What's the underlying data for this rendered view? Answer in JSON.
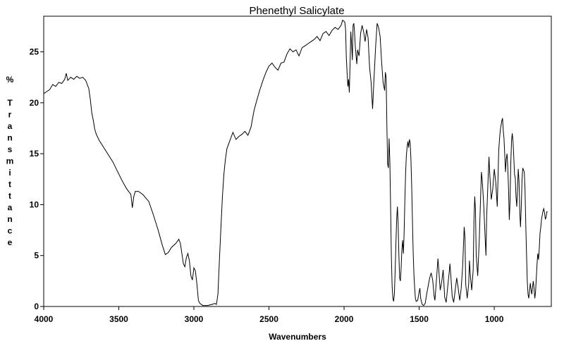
{
  "chart_data": {
    "type": "line",
    "title": "Phenethyl Salicylate",
    "xlabel": "Wavenumbers",
    "ylabel": "% Transmittance",
    "ylabel_prefix": "%",
    "ylabel_word": "Transmittance",
    "xlim": [
      4000,
      620
    ],
    "ylim": [
      0,
      28.5
    ],
    "x_ticks": [
      4000,
      3500,
      3000,
      2500,
      2000,
      1500,
      1000
    ],
    "y_ticks": [
      0,
      5,
      10,
      15,
      20,
      25
    ],
    "grid": false,
    "series": [
      {
        "name": "Phenethyl Salicylate",
        "color": "#000000",
        "points": [
          [
            4000,
            20.9
          ],
          [
            3980,
            21.1
          ],
          [
            3960,
            21.3
          ],
          [
            3940,
            21.8
          ],
          [
            3920,
            21.6
          ],
          [
            3900,
            22.0
          ],
          [
            3880,
            21.9
          ],
          [
            3860,
            22.3
          ],
          [
            3850,
            22.9
          ],
          [
            3840,
            22.2
          ],
          [
            3820,
            22.5
          ],
          [
            3800,
            22.3
          ],
          [
            3780,
            22.6
          ],
          [
            3760,
            22.4
          ],
          [
            3740,
            22.5
          ],
          [
            3720,
            22.2
          ],
          [
            3700,
            21.4
          ],
          [
            3690,
            20.4
          ],
          [
            3680,
            19.0
          ],
          [
            3670,
            18.3
          ],
          [
            3660,
            17.4
          ],
          [
            3650,
            16.9
          ],
          [
            3630,
            16.3
          ],
          [
            3600,
            15.6
          ],
          [
            3570,
            14.9
          ],
          [
            3540,
            14.2
          ],
          [
            3510,
            13.3
          ],
          [
            3480,
            12.4
          ],
          [
            3450,
            11.6
          ],
          [
            3420,
            11.0
          ],
          [
            3410,
            9.7
          ],
          [
            3400,
            10.8
          ],
          [
            3390,
            11.3
          ],
          [
            3370,
            11.3
          ],
          [
            3340,
            11.0
          ],
          [
            3300,
            10.3
          ],
          [
            3270,
            9.0
          ],
          [
            3240,
            7.6
          ],
          [
            3210,
            6.0
          ],
          [
            3190,
            5.1
          ],
          [
            3170,
            5.3
          ],
          [
            3150,
            5.8
          ],
          [
            3120,
            6.2
          ],
          [
            3100,
            6.6
          ],
          [
            3090,
            6.2
          ],
          [
            3080,
            5.2
          ],
          [
            3070,
            4.2
          ],
          [
            3060,
            3.9
          ],
          [
            3050,
            4.8
          ],
          [
            3040,
            5.2
          ],
          [
            3030,
            4.5
          ],
          [
            3020,
            3.0
          ],
          [
            3010,
            2.6
          ],
          [
            3005,
            3.2
          ],
          [
            3000,
            3.8
          ],
          [
            2990,
            3.5
          ],
          [
            2980,
            2.2
          ],
          [
            2970,
            0.6
          ],
          [
            2960,
            0.3
          ],
          [
            2940,
            0.1
          ],
          [
            2910,
            0.1
          ],
          [
            2880,
            0.2
          ],
          [
            2860,
            0.3
          ],
          [
            2850,
            0.2
          ],
          [
            2840,
            1.2
          ],
          [
            2830,
            4.5
          ],
          [
            2820,
            7.8
          ],
          [
            2810,
            10.8
          ],
          [
            2800,
            13.0
          ],
          [
            2790,
            14.5
          ],
          [
            2780,
            15.5
          ],
          [
            2760,
            16.3
          ],
          [
            2740,
            17.1
          ],
          [
            2720,
            16.4
          ],
          [
            2700,
            16.7
          ],
          [
            2680,
            16.9
          ],
          [
            2660,
            17.2
          ],
          [
            2640,
            16.8
          ],
          [
            2620,
            17.6
          ],
          [
            2600,
            19.2
          ],
          [
            2580,
            20.3
          ],
          [
            2560,
            21.3
          ],
          [
            2540,
            22.2
          ],
          [
            2520,
            23.0
          ],
          [
            2500,
            23.6
          ],
          [
            2480,
            23.9
          ],
          [
            2460,
            23.5
          ],
          [
            2440,
            23.2
          ],
          [
            2420,
            23.9
          ],
          [
            2400,
            24.0
          ],
          [
            2380,
            24.8
          ],
          [
            2360,
            25.3
          ],
          [
            2340,
            25.0
          ],
          [
            2320,
            25.2
          ],
          [
            2300,
            24.6
          ],
          [
            2280,
            25.4
          ],
          [
            2260,
            25.6
          ],
          [
            2240,
            25.8
          ],
          [
            2220,
            26.0
          ],
          [
            2200,
            26.2
          ],
          [
            2180,
            26.5
          ],
          [
            2160,
            26.1
          ],
          [
            2140,
            26.8
          ],
          [
            2120,
            27.0
          ],
          [
            2100,
            26.6
          ],
          [
            2080,
            27.1
          ],
          [
            2060,
            27.4
          ],
          [
            2040,
            27.2
          ],
          [
            2020,
            27.6
          ],
          [
            2010,
            28.1
          ],
          [
            2000,
            28.0
          ],
          [
            1995,
            27.9
          ],
          [
            1990,
            27.2
          ],
          [
            1985,
            24.5
          ],
          [
            1980,
            23.0
          ],
          [
            1975,
            21.6
          ],
          [
            1970,
            22.3
          ],
          [
            1965,
            21.0
          ],
          [
            1960,
            24.0
          ],
          [
            1955,
            27.0
          ],
          [
            1950,
            25.8
          ],
          [
            1945,
            24.2
          ],
          [
            1940,
            27.6
          ],
          [
            1935,
            27.8
          ],
          [
            1930,
            26.9
          ],
          [
            1925,
            25.5
          ],
          [
            1920,
            24.6
          ],
          [
            1915,
            23.8
          ],
          [
            1910,
            25.2
          ],
          [
            1900,
            24.6
          ],
          [
            1890,
            26.8
          ],
          [
            1880,
            27.6
          ],
          [
            1870,
            27.0
          ],
          [
            1860,
            26.0
          ],
          [
            1850,
            27.2
          ],
          [
            1840,
            26.4
          ],
          [
            1830,
            23.5
          ],
          [
            1820,
            22.0
          ],
          [
            1810,
            19.4
          ],
          [
            1800,
            22.5
          ],
          [
            1790,
            25.5
          ],
          [
            1780,
            27.8
          ],
          [
            1770,
            27.4
          ],
          [
            1760,
            26.5
          ],
          [
            1750,
            24.0
          ],
          [
            1740,
            22.0
          ],
          [
            1730,
            21.2
          ],
          [
            1725,
            23.0
          ],
          [
            1720,
            22.5
          ],
          [
            1715,
            18.0
          ],
          [
            1710,
            14.0
          ],
          [
            1705,
            13.6
          ],
          [
            1700,
            16.5
          ],
          [
            1695,
            14.2
          ],
          [
            1690,
            9.5
          ],
          [
            1685,
            5.0
          ],
          [
            1680,
            2.0
          ],
          [
            1675,
            0.8
          ],
          [
            1670,
            0.5
          ],
          [
            1665,
            1.2
          ],
          [
            1660,
            3.5
          ],
          [
            1655,
            6.0
          ],
          [
            1650,
            8.5
          ],
          [
            1645,
            9.8
          ],
          [
            1640,
            8.2
          ],
          [
            1635,
            5.0
          ],
          [
            1630,
            2.8
          ],
          [
            1625,
            2.5
          ],
          [
            1620,
            3.8
          ],
          [
            1615,
            5.5
          ],
          [
            1610,
            6.5
          ],
          [
            1605,
            5.2
          ],
          [
            1600,
            7.2
          ],
          [
            1595,
            10.5
          ],
          [
            1590,
            13.2
          ],
          [
            1585,
            14.8
          ],
          [
            1580,
            15.7
          ],
          [
            1575,
            16.2
          ],
          [
            1570,
            15.6
          ],
          [
            1565,
            16.4
          ],
          [
            1560,
            16.1
          ],
          [
            1555,
            14.6
          ],
          [
            1550,
            12.0
          ],
          [
            1545,
            8.5
          ],
          [
            1540,
            5.5
          ],
          [
            1535,
            3.2
          ],
          [
            1530,
            1.8
          ],
          [
            1525,
            0.8
          ],
          [
            1520,
            0.5
          ],
          [
            1510,
            0.6
          ],
          [
            1500,
            1.4
          ],
          [
            1495,
            1.8
          ],
          [
            1490,
            0.8
          ],
          [
            1480,
            0.2
          ],
          [
            1470,
            0.1
          ],
          [
            1460,
            0.3
          ],
          [
            1450,
            1.2
          ],
          [
            1440,
            2.0
          ],
          [
            1430,
            2.8
          ],
          [
            1420,
            3.3
          ],
          [
            1410,
            2.6
          ],
          [
            1400,
            1.0
          ],
          [
            1395,
            0.6
          ],
          [
            1390,
            1.6
          ],
          [
            1380,
            3.6
          ],
          [
            1375,
            4.7
          ],
          [
            1370,
            3.8
          ],
          [
            1360,
            1.6
          ],
          [
            1350,
            2.4
          ],
          [
            1340,
            3.6
          ],
          [
            1335,
            2.2
          ],
          [
            1330,
            0.9
          ],
          [
            1320,
            0.4
          ],
          [
            1310,
            1.9
          ],
          [
            1300,
            3.3
          ],
          [
            1295,
            4.2
          ],
          [
            1290,
            3.2
          ],
          [
            1280,
            1.0
          ],
          [
            1270,
            0.4
          ],
          [
            1260,
            1.6
          ],
          [
            1250,
            2.8
          ],
          [
            1240,
            1.8
          ],
          [
            1230,
            0.6
          ],
          [
            1220,
            1.8
          ],
          [
            1210,
            4.0
          ],
          [
            1200,
            7.8
          ],
          [
            1195,
            6.8
          ],
          [
            1190,
            2.2
          ],
          [
            1180,
            0.8
          ],
          [
            1170,
            2.2
          ],
          [
            1165,
            4.5
          ],
          [
            1160,
            3.2
          ],
          [
            1150,
            1.6
          ],
          [
            1140,
            3.6
          ],
          [
            1135,
            8.5
          ],
          [
            1130,
            10.8
          ],
          [
            1125,
            9.5
          ],
          [
            1120,
            5.0
          ],
          [
            1110,
            3.0
          ],
          [
            1100,
            6.5
          ],
          [
            1090,
            11.2
          ],
          [
            1085,
            13.2
          ],
          [
            1080,
            12.4
          ],
          [
            1070,
            10.0
          ],
          [
            1060,
            6.5
          ],
          [
            1055,
            5.0
          ],
          [
            1050,
            9.0
          ],
          [
            1040,
            12.8
          ],
          [
            1035,
            14.7
          ],
          [
            1030,
            13.0
          ],
          [
            1020,
            10.5
          ],
          [
            1010,
            11.5
          ],
          [
            1000,
            13.5
          ],
          [
            990,
            12.2
          ],
          [
            980,
            9.8
          ],
          [
            975,
            12.6
          ],
          [
            970,
            15.3
          ],
          [
            965,
            16.4
          ],
          [
            960,
            17.3
          ],
          [
            950,
            18.2
          ],
          [
            945,
            18.5
          ],
          [
            940,
            17.3
          ],
          [
            935,
            16.5
          ],
          [
            930,
            14.8
          ],
          [
            925,
            13.2
          ],
          [
            920,
            14.5
          ],
          [
            915,
            15.0
          ],
          [
            910,
            13.8
          ],
          [
            905,
            11.6
          ],
          [
            900,
            8.5
          ],
          [
            895,
            10.2
          ],
          [
            890,
            14.0
          ],
          [
            885,
            16.3
          ],
          [
            880,
            17.0
          ],
          [
            875,
            16.2
          ],
          [
            870,
            14.8
          ],
          [
            865,
            13.0
          ],
          [
            860,
            12.6
          ],
          [
            855,
            10.8
          ],
          [
            850,
            9.8
          ],
          [
            845,
            11.6
          ],
          [
            840,
            13.5
          ],
          [
            835,
            12.3
          ],
          [
            830,
            9.2
          ],
          [
            825,
            7.8
          ],
          [
            820,
            9.8
          ],
          [
            815,
            12.5
          ],
          [
            810,
            13.6
          ],
          [
            800,
            13.2
          ],
          [
            795,
            11.5
          ],
          [
            790,
            8.0
          ],
          [
            785,
            5.0
          ],
          [
            780,
            2.5
          ],
          [
            775,
            1.2
          ],
          [
            770,
            0.8
          ],
          [
            765,
            1.5
          ],
          [
            760,
            2.3
          ],
          [
            755,
            1.7
          ],
          [
            750,
            1.2
          ],
          [
            745,
            1.9
          ],
          [
            740,
            2.5
          ],
          [
            735,
            1.8
          ],
          [
            730,
            0.8
          ],
          [
            725,
            1.4
          ],
          [
            720,
            2.8
          ],
          [
            715,
            4.2
          ],
          [
            710,
            5.2
          ],
          [
            705,
            4.6
          ],
          [
            700,
            5.8
          ],
          [
            695,
            7.2
          ],
          [
            690,
            7.8
          ],
          [
            685,
            8.6
          ],
          [
            680,
            9.0
          ],
          [
            675,
            9.4
          ],
          [
            670,
            9.6
          ],
          [
            665,
            9.2
          ],
          [
            660,
            8.6
          ],
          [
            655,
            8.7
          ],
          [
            650,
            9.3
          ],
          [
            645,
            9.3
          ]
        ]
      }
    ]
  }
}
